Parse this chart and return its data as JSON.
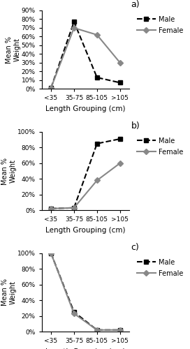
{
  "x_labels": [
    "<35",
    "35-75",
    "85-105",
    ">105"
  ],
  "panel_a": {
    "label": "a)",
    "male": [
      1,
      77,
      13,
      7
    ],
    "female": [
      1,
      70,
      62,
      30
    ],
    "ylim": [
      0,
      90
    ],
    "yticks": [
      0,
      10,
      20,
      30,
      40,
      50,
      60,
      70,
      80,
      90
    ],
    "ytick_labels": [
      "0%",
      "10%",
      "20%",
      "30%",
      "40%",
      "50%",
      "60%",
      "70%",
      "80%",
      "90%"
    ]
  },
  "panel_b": {
    "label": "b)",
    "male": [
      2,
      3,
      85,
      91
    ],
    "female": [
      2,
      3,
      38,
      60
    ],
    "ylim": [
      0,
      100
    ],
    "yticks": [
      0,
      20,
      40,
      60,
      80,
      100
    ],
    "ytick_labels": [
      "0%",
      "20%",
      "40%",
      "60%",
      "80%",
      "100%"
    ]
  },
  "panel_c": {
    "label": "c)",
    "male": [
      100,
      25,
      2,
      2
    ],
    "female": [
      100,
      23,
      2,
      2
    ],
    "ylim": [
      0,
      100
    ],
    "yticks": [
      0,
      20,
      40,
      60,
      80,
      100
    ],
    "ytick_labels": [
      "0%",
      "20%",
      "40%",
      "60%",
      "80%",
      "100%"
    ]
  },
  "male_color": "#000000",
  "female_color": "#888888",
  "male_marker": "s",
  "female_marker": "D",
  "male_linestyle": "--",
  "female_linestyle": "-",
  "xlabel": "Length Grouping (cm)",
  "ylabel": "Mean %\nWeight",
  "legend_male": "Male",
  "legend_female": "Female",
  "linewidth": 1.5,
  "markersize": 4,
  "tick_fontsize": 6.5,
  "xlabel_fontsize": 7.5,
  "ylabel_fontsize": 7,
  "legend_fontsize": 7,
  "panel_label_fontsize": 9
}
